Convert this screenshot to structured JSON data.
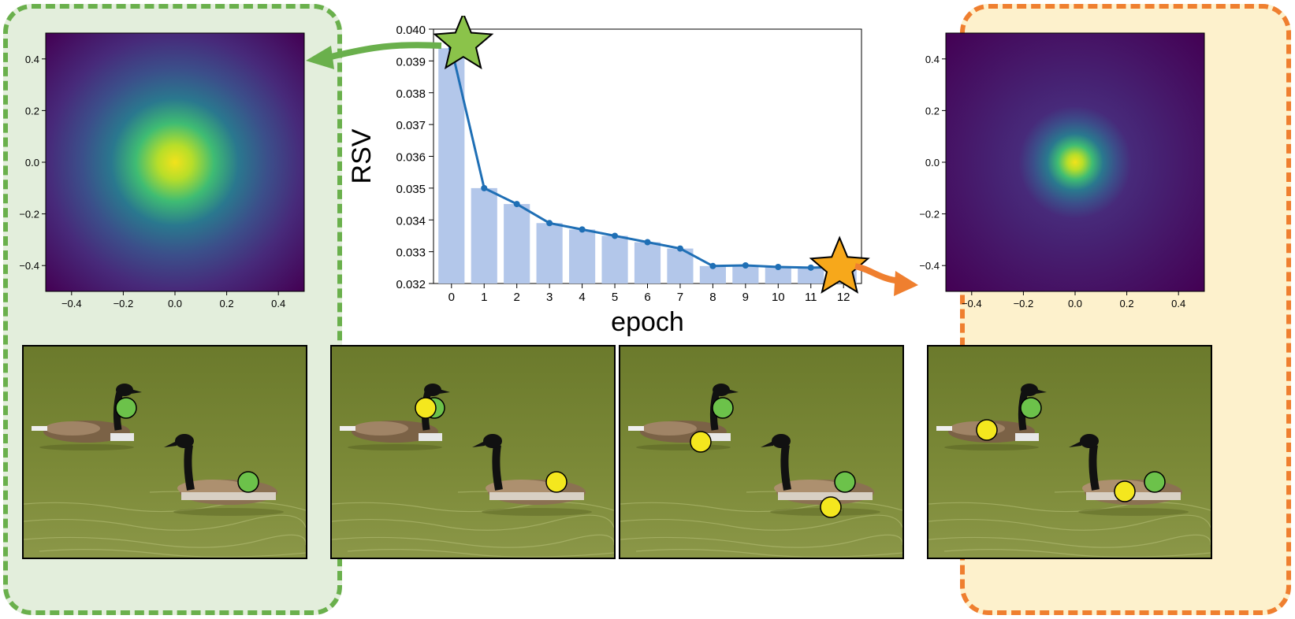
{
  "colors": {
    "bar": "#b3c7ea",
    "line": "#1f6fb5",
    "green_star": "#8bc34a",
    "orange_star": "#f7a81b",
    "green_panel_bg": "#e3eedc",
    "green_panel_border": "#6ab04c",
    "orange_panel_bg": "#fdf1cc",
    "orange_panel_border": "#ef7f2f",
    "green_marker": "#6cc24a",
    "yellow_marker": "#f4e71e"
  },
  "icons": {
    "green_star": "star-icon",
    "orange_star": "star-icon",
    "green_arrow": "curved-arrow-left-icon",
    "orange_arrow": "curved-arrow-right-icon"
  },
  "chart_data": [
    {
      "type": "bar",
      "xlabel": "epoch",
      "ylabel": "RSV",
      "categories": [
        "0",
        "1",
        "2",
        "3",
        "4",
        "5",
        "6",
        "7",
        "8",
        "9",
        "10",
        "11",
        "12"
      ],
      "values": [
        0.0394,
        0.035,
        0.0345,
        0.0339,
        0.0337,
        0.0335,
        0.0333,
        0.0331,
        0.03255,
        0.03257,
        0.03252,
        0.0325,
        0.03252
      ],
      "line_values": [
        0.0394,
        0.035,
        0.0345,
        0.0339,
        0.0337,
        0.0335,
        0.0333,
        0.0331,
        0.03255,
        0.03257,
        0.03252,
        0.0325,
        0.03252
      ],
      "ylim": [
        0.032,
        0.04
      ],
      "yticks": [
        "0.032",
        "0.033",
        "0.034",
        "0.035",
        "0.036",
        "0.037",
        "0.038",
        "0.039",
        "0.040"
      ],
      "highlight": {
        "green_star_epoch": 0,
        "orange_star_epoch": 12
      }
    },
    {
      "type": "heatmap",
      "xlim": [
        -0.5,
        0.5
      ],
      "ylim": [
        -0.5,
        0.5
      ],
      "xticks": [
        "−0.4",
        "−0.2",
        "0.0",
        "0.2",
        "0.4"
      ],
      "yticks": [
        "0.4",
        "0.2",
        "0.0",
        "−0.2",
        "−0.4"
      ],
      "spread": 0.27
    },
    {
      "type": "heatmap",
      "xlim": [
        -0.5,
        0.5
      ],
      "ylim": [
        -0.5,
        0.5
      ],
      "xticks": [
        "−0.4",
        "−0.2",
        "0.0",
        "0.2",
        "0.4"
      ],
      "yticks": [
        "0.4",
        "0.2",
        "0.0",
        "−0.2",
        "−0.4"
      ],
      "spread": 0.12
    }
  ]
}
